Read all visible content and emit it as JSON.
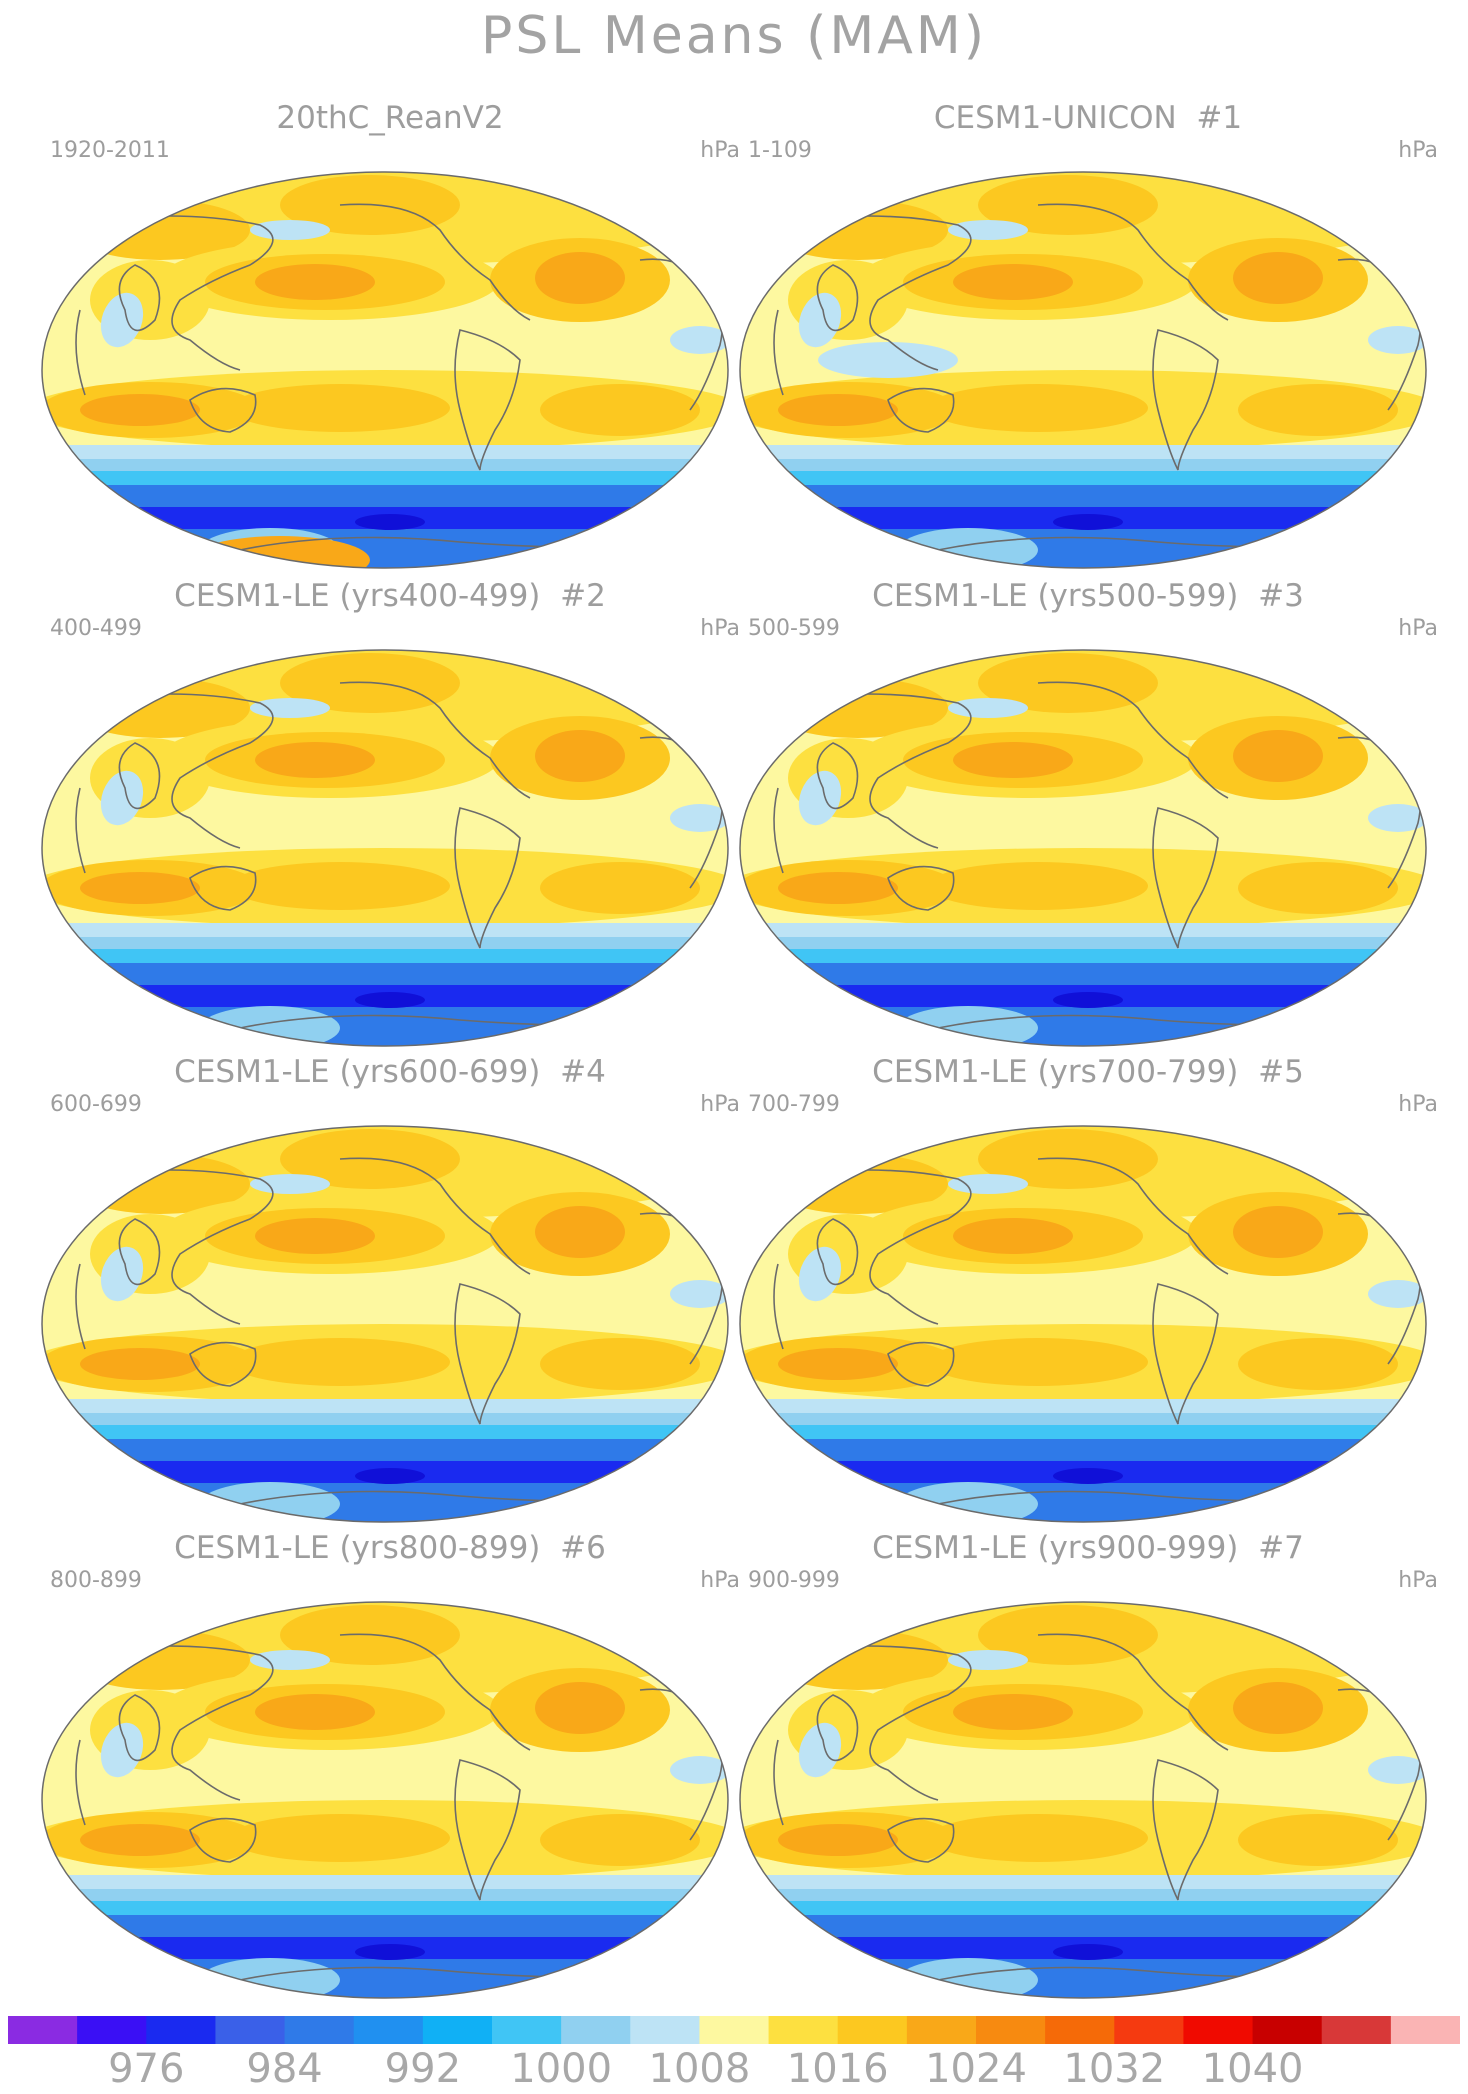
{
  "figure": {
    "title": "PSL Means (MAM)",
    "units": "hPa"
  },
  "panels": [
    {
      "title": "20thC_ReanV2",
      "member": "",
      "years": "1920-2011",
      "southern_blob": true
    },
    {
      "title": "CESM1-UNICON",
      "member": "#1",
      "years": "1-109",
      "southern_blob": false
    },
    {
      "title": "CESM1-LE (yrs400-499)",
      "member": "#2",
      "years": "400-499",
      "southern_blob": false
    },
    {
      "title": "CESM1-LE (yrs500-599)",
      "member": "#3",
      "years": "500-599",
      "southern_blob": false
    },
    {
      "title": "CESM1-LE (yrs600-699)",
      "member": "#4",
      "years": "600-699",
      "southern_blob": false
    },
    {
      "title": "CESM1-LE (yrs700-799)",
      "member": "#5",
      "years": "700-799",
      "southern_blob": false
    },
    {
      "title": "CESM1-LE (yrs800-899)",
      "member": "#6",
      "years": "800-899",
      "southern_blob": false
    },
    {
      "title": "CESM1-LE (yrs900-999)",
      "member": "#7",
      "years": "900-999",
      "southern_blob": false
    }
  ],
  "colorbar": {
    "colors": [
      "#8a2be2",
      "#3a0ff5",
      "#1a2af0",
      "#3a60e8",
      "#2f7ae8",
      "#2090f0",
      "#10b0f5",
      "#40c5f5",
      "#90d0f0",
      "#bde3f5",
      "#fdf8a0",
      "#fde040",
      "#fcc820",
      "#f9a818",
      "#f78a10",
      "#f56a08",
      "#f53a10",
      "#f00a00",
      "#c80000",
      "#d83838",
      "#fab4b4"
    ],
    "labels": [
      "976",
      "984",
      "992",
      "1000",
      "1008",
      "1016",
      "1024",
      "1032",
      "1040"
    ]
  },
  "map_palette": {
    "high_1": "#fde040",
    "high_2": "#fcc820",
    "high_3": "#f9a818",
    "neutral": "#fdf8a0",
    "low_1": "#bde3f5",
    "low_2": "#90d0f0",
    "low_3": "#40c5f5",
    "low_4": "#2f7ae8",
    "low_5": "#1a2af0",
    "coast": "#6b6b6b"
  }
}
